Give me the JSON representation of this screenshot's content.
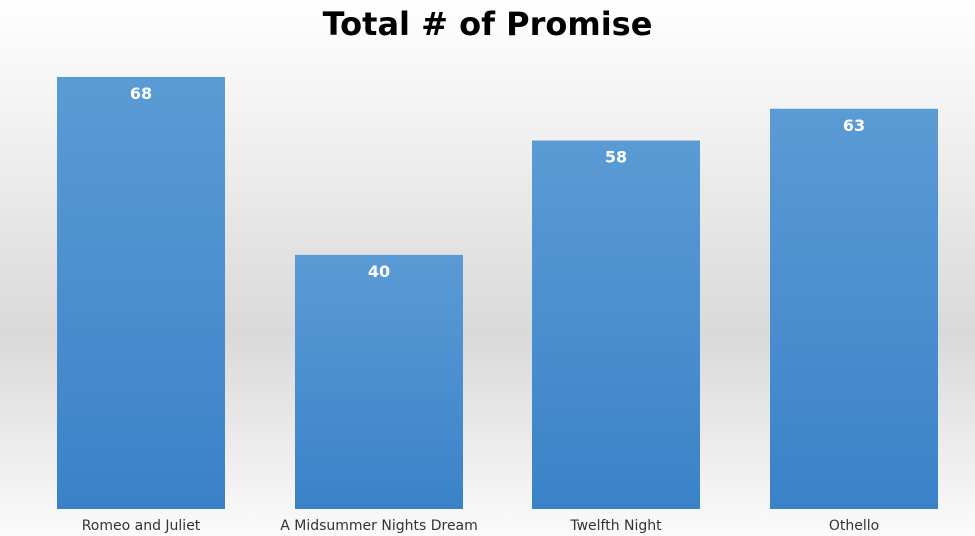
{
  "chart_data": {
    "type": "bar",
    "title": "Total # of Promise",
    "categories": [
      "Romeo and Juliet",
      "A Midsummer Nights Dream",
      "Twelfth Night",
      "Othello"
    ],
    "values": [
      68,
      40,
      58,
      63
    ],
    "xlabel": "",
    "ylabel": "",
    "ylim": [
      0,
      68
    ],
    "grid": false,
    "legend": "none",
    "bar_color_top": "#5b9bd5",
    "bar_color_bottom": "#3a82c8"
  }
}
